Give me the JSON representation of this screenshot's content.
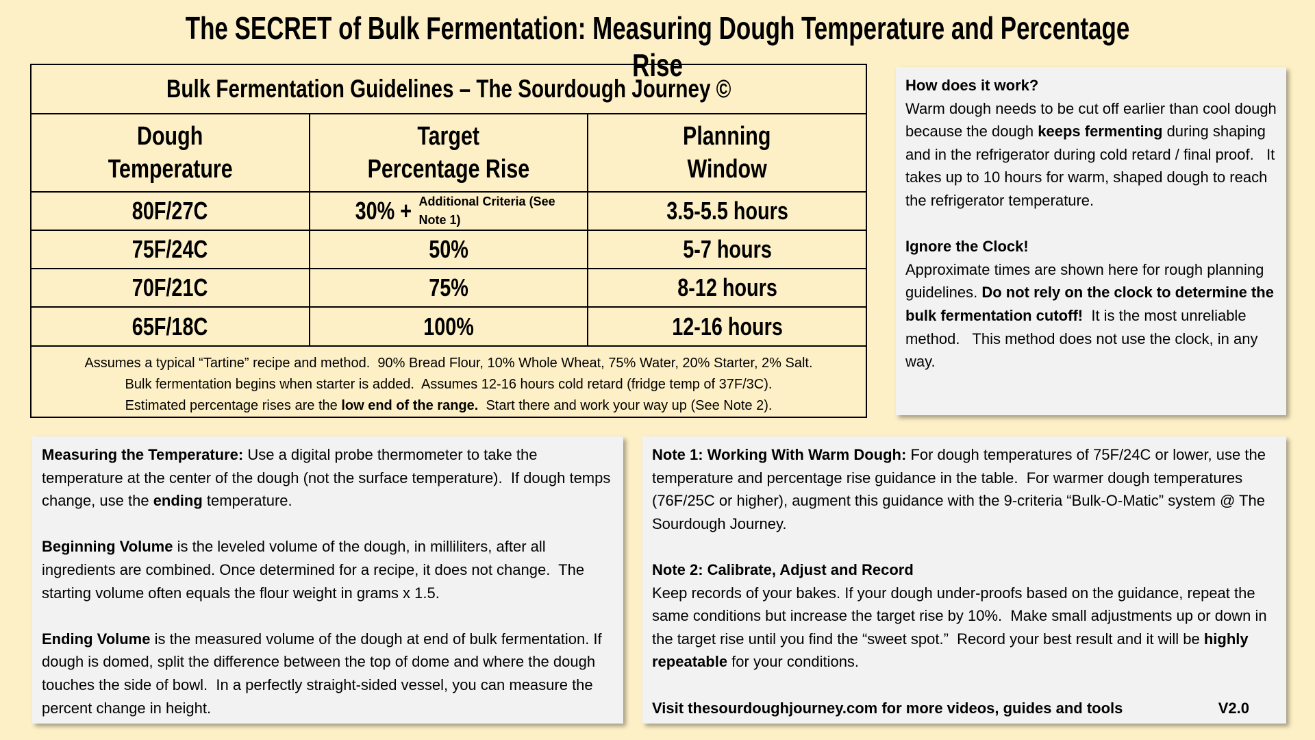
{
  "title": "The SECRET of Bulk Fermentation: Measuring Dough Temperature and Percentage Rise",
  "table": {
    "caption": "Bulk Fermentation Guidelines – The Sourdough Journey ©",
    "headers": [
      [
        "Dough",
        "Temperature"
      ],
      [
        "Target",
        "Percentage Rise"
      ],
      [
        "Planning",
        "Window"
      ]
    ],
    "rows": [
      [
        "80F/27C",
        {
          "main": "30% +",
          "note": "Additional Criteria (See Note 1)"
        },
        "3.5-5.5 hours"
      ],
      [
        "75F/24C",
        "50%",
        "5-7 hours"
      ],
      [
        "70F/21C",
        "75%",
        "8-12 hours"
      ],
      [
        "65F/18C",
        "100%",
        "12-16 hours"
      ]
    ],
    "footnotes": [
      "Assumes a typical “Tartine” recipe and method.  90% Bread Flour, 10% Whole Wheat, 75% Water, 20% Starter, 2% Salt.",
      "Bulk fermentation begins when starter is added.  Assumes 12-16 hours cold retard (fridge temp of 37F/3C).",
      [
        "Estimated percentage rises are the ",
        "low end of the range.",
        "  Start there and work your way up (See Note 2)."
      ]
    ]
  },
  "how_it_works": {
    "heading": "How does it work?",
    "parts": [
      "Warm dough needs to be cut off earlier than cool dough because the dough ",
      "keeps fermenting",
      " during shaping and in the refrigerator during cold retard / final proof.   It takes up to 10 hours for warm, shaped dough to reach the refrigerator temperature."
    ],
    "heading2": "Ignore the Clock!",
    "parts2": [
      "Approximate times are shown here for rough planning guidelines. ",
      "Do not rely on the clock to determine the bulk fermentation cutoff!",
      "  It is the most unreliable method.   This method does not use the clock, in any way."
    ]
  },
  "measuring": [
    [
      "Measuring the Temperature:",
      " Use a digital probe thermometer to take the temperature at the center of the dough (not the surface temperature).  If dough temps change, use the ",
      "ending",
      " temperature."
    ],
    [
      "Beginning Volume",
      " is the leveled volume of the dough, in milliliters, after all ingredients are combined. Once determined for a recipe, it does not change.  The starting volume often equals the flour weight in grams x 1.5."
    ],
    [
      "Ending Volume",
      " is the measured volume of the dough at end of bulk fermentation. If dough is domed, split the difference between the top of dome and where the dough touches the side of bowl.  In a perfectly straight-sided vessel, you can measure the percent change in height."
    ]
  ],
  "notes": {
    "note1": [
      "Note 1: Working With Warm Dough:",
      " For dough temperatures of 75F/24C or lower, use the temperature and percentage rise guidance in the table.  For warmer dough temperatures (76F/25C or higher), augment this guidance with the 9-criteria “Bulk-O-Matic” system @ The Sourdough Journey."
    ],
    "note2_heading": "Note 2: Calibrate, Adjust and Record",
    "note2": [
      "Keep records of your bakes. If your dough under-proofs based on the guidance, repeat the same conditions but increase the target rise by 10%.  Make small adjustments up or down in the target rise until you find the “sweet spot.”  Record your best result and it will be ",
      "highly repeatable",
      " for your conditions."
    ],
    "footer": "Visit thesourdoughjourney.com for more videos, guides and tools",
    "version": "V2.0"
  }
}
